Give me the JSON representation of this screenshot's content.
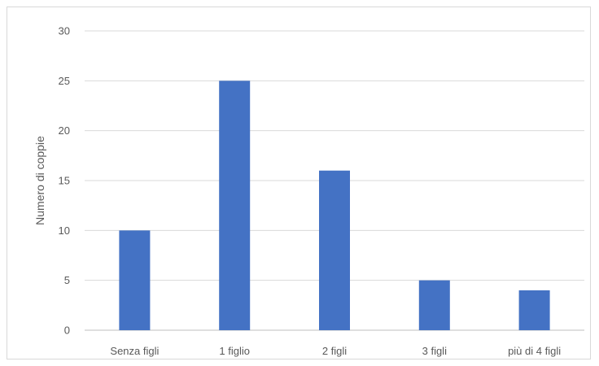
{
  "chart_data": {
    "type": "bar",
    "title": "",
    "xlabel": "",
    "ylabel": "Numero di coppie",
    "categories": [
      "Senza figli",
      "1 figlio",
      "2 figli",
      "3 figli",
      "più di 4 figli"
    ],
    "values": [
      10,
      25,
      16,
      5,
      4
    ],
    "ylim": [
      0,
      30
    ],
    "yticks": [
      0,
      5,
      10,
      15,
      20,
      25,
      30
    ],
    "grid": true,
    "legend": "none",
    "bar_color": "#4472C4",
    "grid_color": "#d9d9d9",
    "axis_color": "#bfbfbf"
  }
}
